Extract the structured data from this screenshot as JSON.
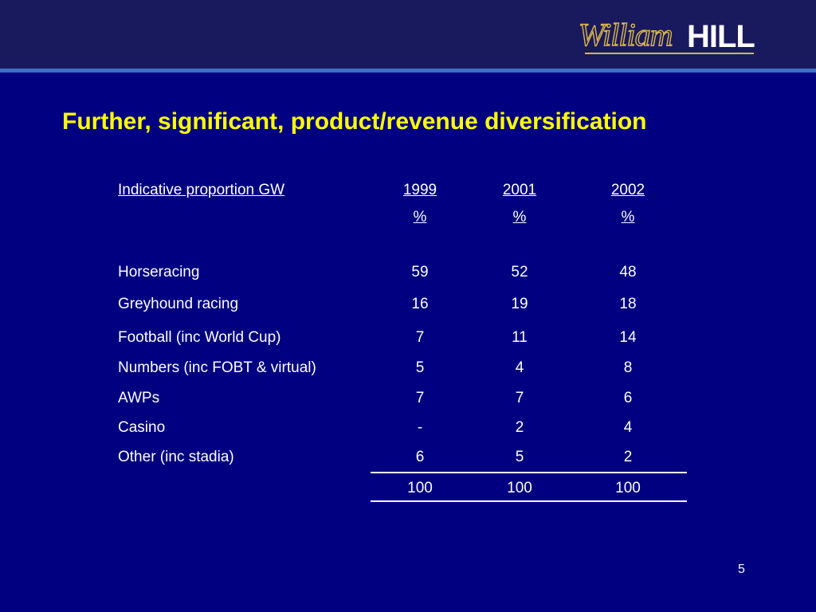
{
  "logo": {
    "text_script": "William",
    "text_bold": "HILL"
  },
  "slide": {
    "title": "Further, significant, product/revenue diversification",
    "page_number": "5"
  },
  "table": {
    "header_label": "Indicative proportion GW",
    "columns": [
      {
        "year": "1999",
        "unit": "%"
      },
      {
        "year": "2001",
        "unit": "%"
      },
      {
        "year": "2002",
        "unit": "%"
      }
    ],
    "rows": [
      {
        "label": "Horseracing",
        "values": [
          "59",
          "52",
          "48"
        ]
      },
      {
        "label": "Greyhound racing",
        "values": [
          "16",
          "19",
          "18"
        ]
      },
      {
        "label": "Football (inc World Cup)",
        "values": [
          "7",
          "11",
          "14"
        ]
      },
      {
        "label": "Numbers (inc FOBT & virtual)",
        "values": [
          "5",
          "4",
          "8"
        ]
      },
      {
        "label": "AWPs",
        "values": [
          "7",
          "7",
          "6"
        ]
      },
      {
        "label": "Casino",
        "values": [
          "-",
          "2",
          "4"
        ]
      },
      {
        "label": "Other (inc stadia)",
        "values": [
          "6",
          "5",
          "2"
        ]
      }
    ],
    "totals": [
      "100",
      "100",
      "100"
    ]
  },
  "colors": {
    "background": "#000080",
    "header_band": "#19195e",
    "header_rule": "#3d6fc4",
    "title": "#ffff00",
    "logo_gold": "#d9b64a"
  }
}
